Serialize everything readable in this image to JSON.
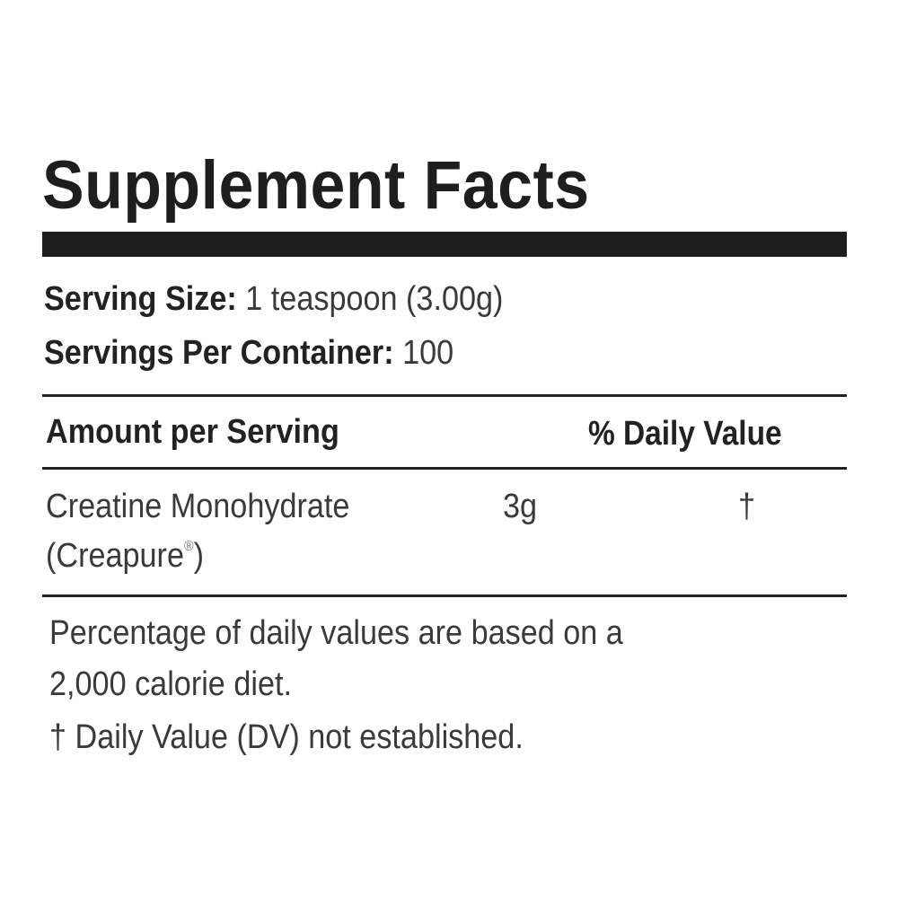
{
  "title": "Supplement Facts",
  "serving_size": {
    "label": "Serving Size:",
    "value": "1 teaspoon (3.00g)"
  },
  "servings_per_container": {
    "label": "Servings Per Container:",
    "value": "100"
  },
  "header": {
    "amount": "Amount per Serving",
    "daily_value": "% Daily Value"
  },
  "ingredients": [
    {
      "name": "Creatine Monohydrate",
      "subname": "(Creapure",
      "mark": "®",
      "subname_end": ")",
      "amount": "3g",
      "dv": "†"
    }
  ],
  "footnotes": [
    "Percentage of daily values are based on a",
    "2,000 calorie diet.",
    "† Daily Value (DV) not established."
  ]
}
